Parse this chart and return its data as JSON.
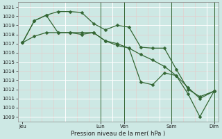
{
  "background_color": "#cde8e4",
  "grid_color_white": "#ffffff",
  "grid_color_pink": "#e8c8c8",
  "line_color": "#336633",
  "ylabel_text": "Pression niveau de la mer( hPa )",
  "xtick_labels": [
    "Jeu",
    "Lun",
    "Ven",
    "Sam",
    "Dim"
  ],
  "ylim": [
    1008.5,
    1021.5
  ],
  "yticks": [
    1009,
    1010,
    1011,
    1012,
    1013,
    1014,
    1015,
    1016,
    1017,
    1018,
    1019,
    1020,
    1021
  ],
  "xlim": [
    0,
    85
  ],
  "xtick_positions": [
    2,
    35,
    45,
    65,
    83
  ],
  "vline_positions": [
    35,
    45,
    65,
    83
  ],
  "line1_x": [
    2,
    7,
    12,
    17,
    22,
    27,
    32,
    37,
    42,
    47,
    52,
    57,
    62,
    67,
    72,
    77,
    83
  ],
  "line1_y": [
    1017.1,
    1019.5,
    1020.1,
    1020.5,
    1020.5,
    1020.4,
    1019.2,
    1018.5,
    1019.0,
    1018.8,
    1016.6,
    1016.5,
    1016.5,
    1014.2,
    1012.0,
    1011.2,
    1011.8
  ],
  "line2_x": [
    2,
    7,
    12,
    17,
    22,
    27,
    32,
    37,
    42,
    47,
    52,
    57,
    62,
    67,
    72,
    77,
    83
  ],
  "line2_y": [
    1017.1,
    1019.5,
    1020.1,
    1018.2,
    1018.2,
    1018.0,
    1018.2,
    1017.3,
    1017.0,
    1016.5,
    1012.8,
    1012.5,
    1013.8,
    1013.5,
    1012.2,
    1011.0,
    1011.8
  ],
  "line3_x": [
    2,
    7,
    12,
    17,
    22,
    27,
    32,
    37,
    42,
    47,
    52,
    57,
    62,
    67,
    72,
    77,
    83
  ],
  "line3_y": [
    1017.1,
    1017.8,
    1018.2,
    1018.2,
    1018.2,
    1018.2,
    1018.2,
    1017.3,
    1016.8,
    1016.5,
    1015.8,
    1015.2,
    1014.5,
    1013.5,
    1011.5,
    1009.0,
    1011.8
  ],
  "marker_size": 2.5,
  "line_width": 0.9,
  "fontsize_ticks": 5,
  "fontsize_xlabel": 6
}
